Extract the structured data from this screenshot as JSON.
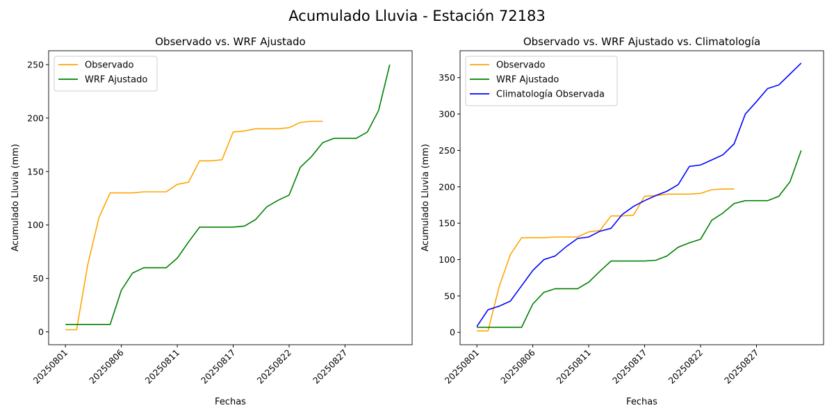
{
  "suptitle": "Acumulado Lluvia - Estación 72183",
  "chart_data": [
    {
      "type": "line",
      "title": "Observado vs. WRF Ajustado",
      "xlabel": "Fechas",
      "ylabel": "Acumulado Lluvia (mm)",
      "ylim": [
        -12,
        263
      ],
      "yticks": [
        0,
        50,
        100,
        150,
        200,
        250
      ],
      "xticks": [
        {
          "index": 0,
          "label": "20250801"
        },
        {
          "index": 5,
          "label": "20250806"
        },
        {
          "index": 10,
          "label": "20250811"
        },
        {
          "index": 15,
          "label": "20250817"
        },
        {
          "index": 20,
          "label": "20250822"
        },
        {
          "index": 25,
          "label": "20250827"
        }
      ],
      "xlim": [
        -1.5,
        31
      ],
      "legend": "upper-left",
      "series": [
        {
          "name": "Observado",
          "color": "#ffa500",
          "values": [
            2,
            2,
            63,
            107,
            130,
            130,
            130,
            131,
            131,
            131,
            138,
            140,
            160,
            160,
            161,
            187,
            188,
            190,
            190,
            190,
            191,
            196,
            197,
            197
          ]
        },
        {
          "name": "WRF Ajustado",
          "color": "#008000",
          "values": [
            7,
            7,
            7,
            7,
            7,
            39,
            55,
            60,
            60,
            60,
            69,
            84,
            98,
            98,
            98,
            98,
            99,
            105,
            117,
            123,
            128,
            154,
            164,
            177,
            181,
            181,
            181,
            187,
            207,
            250
          ]
        }
      ]
    },
    {
      "type": "line",
      "title": "Observado vs. WRF Ajustado vs. Climatología",
      "xlabel": "Fechas",
      "ylabel": "Acumulado Lluvia (mm)",
      "ylim": [
        -17,
        387
      ],
      "yticks": [
        0,
        50,
        100,
        150,
        200,
        250,
        300,
        350
      ],
      "xticks": [
        {
          "index": 0,
          "label": "20250801"
        },
        {
          "index": 5,
          "label": "20250806"
        },
        {
          "index": 10,
          "label": "20250811"
        },
        {
          "index": 15,
          "label": "20250817"
        },
        {
          "index": 20,
          "label": "20250822"
        },
        {
          "index": 25,
          "label": "20250827"
        }
      ],
      "xlim": [
        -1.5,
        31
      ],
      "legend": "upper-left",
      "series": [
        {
          "name": "Observado",
          "color": "#ffa500",
          "values": [
            2,
            2,
            63,
            107,
            130,
            130,
            130,
            131,
            131,
            131,
            138,
            140,
            160,
            160,
            161,
            187,
            188,
            190,
            190,
            190,
            191,
            196,
            197,
            197
          ]
        },
        {
          "name": "WRF Ajustado",
          "color": "#008000",
          "values": [
            7,
            7,
            7,
            7,
            7,
            39,
            55,
            60,
            60,
            60,
            69,
            84,
            98,
            98,
            98,
            98,
            99,
            105,
            117,
            123,
            128,
            154,
            164,
            177,
            181,
            181,
            181,
            187,
            207,
            250
          ]
        },
        {
          "name": "Climatología Observada",
          "color": "#0000ff",
          "values": [
            8,
            31,
            36,
            43,
            64,
            85,
            100,
            105,
            118,
            129,
            131,
            139,
            143,
            162,
            173,
            181,
            188,
            194,
            203,
            228,
            230,
            237,
            244,
            259,
            300,
            317,
            335,
            340,
            355,
            370
          ]
        }
      ]
    }
  ]
}
